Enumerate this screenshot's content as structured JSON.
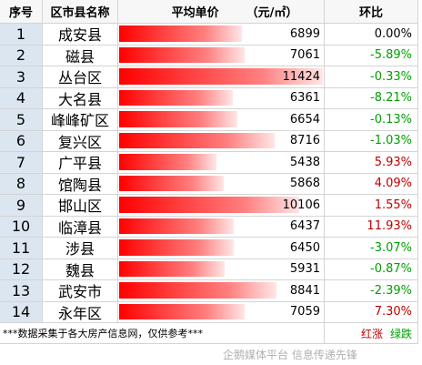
{
  "header": {
    "index": "序号",
    "name": "区市县名称",
    "price": "平均单价",
    "unit": "（元/㎡）",
    "change": "环比"
  },
  "table": {
    "rows": [
      {
        "index": 1,
        "name": "成安县",
        "price": 6899,
        "change": "0.00%"
      },
      {
        "index": 2,
        "name": "磁县",
        "price": 7061,
        "change": "-5.89%"
      },
      {
        "index": 3,
        "name": "丛台区",
        "price": 11424,
        "change": "-0.33%"
      },
      {
        "index": 4,
        "name": "大名县",
        "price": 6361,
        "change": "-8.21%"
      },
      {
        "index": 5,
        "name": "峰峰矿区",
        "price": 6654,
        "change": "-0.13%"
      },
      {
        "index": 6,
        "name": "复兴区",
        "price": 8716,
        "change": "-1.03%"
      },
      {
        "index": 7,
        "name": "广平县",
        "price": 5438,
        "change": "5.93%"
      },
      {
        "index": 8,
        "name": "馆陶县",
        "price": 5868,
        "change": "4.09%"
      },
      {
        "index": 9,
        "name": "邯山区",
        "price": 10106,
        "change": "1.55%"
      },
      {
        "index": 10,
        "name": "临漳县",
        "price": 6437,
        "change": "11.93%"
      },
      {
        "index": 11,
        "name": "涉县",
        "price": 6450,
        "change": "-3.07%"
      },
      {
        "index": 12,
        "name": "魏县",
        "price": 5931,
        "change": "-0.87%"
      },
      {
        "index": 13,
        "name": "武安市",
        "price": 8841,
        "change": "-2.39%"
      },
      {
        "index": 14,
        "name": "永年区",
        "price": 7059,
        "change": "7.30%"
      }
    ]
  },
  "footer": {
    "note": "***数据采集于各大房产信息网，仅供参考***",
    "up": {
      "text": "红涨",
      "color": "#c00000"
    },
    "down": {
      "text": "绿跌",
      "color": "#00a000"
    }
  },
  "watermark": "企鹅媒体平台 信息传递先锋"
}
